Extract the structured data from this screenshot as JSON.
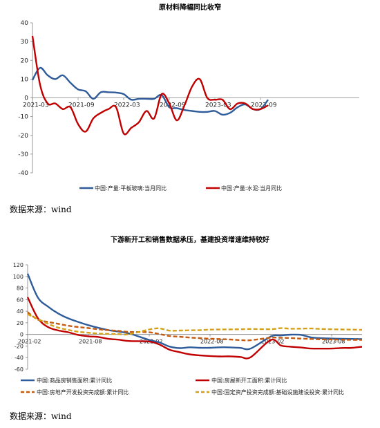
{
  "chart_data": [
    {
      "type": "line",
      "title": "原材料降幅同比收窄",
      "xlabel": "",
      "ylabel": "",
      "ylim": [
        -40,
        40
      ],
      "yticks": [
        40,
        30,
        20,
        10,
        0,
        -10,
        -20,
        -30,
        -40
      ],
      "xlim": [
        "2021-03",
        "2024-10"
      ],
      "xticks": [
        "2021-03",
        "2021-09",
        "2022-03",
        "2022-09",
        "2023-03",
        "2023-09"
      ],
      "grid": false,
      "legend_position": "bottom",
      "series": [
        {
          "name": "中国:产量:平板玻璃:当月同比",
          "color": "#2e5b9a",
          "x": [
            "2021-03",
            "2021-04",
            "2021-05",
            "2021-06",
            "2021-07",
            "2021-08",
            "2021-09",
            "2021-10",
            "2021-11",
            "2021-12",
            "2022-01",
            "2022-02",
            "2022-03",
            "2022-04",
            "2022-05",
            "2022-06",
            "2022-07",
            "2022-08",
            "2022-09",
            "2022-10",
            "2022-11",
            "2022-12",
            "2023-01",
            "2023-02",
            "2023-03",
            "2023-04",
            "2023-05",
            "2023-06",
            "2023-07",
            "2023-08",
            "2023-09",
            "2023-10"
          ],
          "values": [
            9.5,
            16,
            12,
            10,
            12,
            8,
            4.5,
            3.5,
            -0.5,
            3,
            3,
            2.8,
            2,
            -1,
            -0.5,
            -0.5,
            -0.5,
            1.5,
            -5,
            -5.5,
            -6.5,
            -7,
            -7.5,
            -7.5,
            -7,
            -9,
            -8,
            -5,
            -3.5,
            -6,
            -6,
            -1
          ]
        },
        {
          "name": "中国:产量:水泥:当月同比",
          "color": "#c00000",
          "x": [
            "2021-03",
            "2021-04",
            "2021-05",
            "2021-06",
            "2021-07",
            "2021-08",
            "2021-09",
            "2021-10",
            "2021-11",
            "2021-12",
            "2022-01",
            "2022-02",
            "2022-03",
            "2022-04",
            "2022-05",
            "2022-06",
            "2022-07",
            "2022-08",
            "2022-09",
            "2022-10",
            "2022-11",
            "2022-12",
            "2023-01",
            "2023-02",
            "2023-03",
            "2023-04",
            "2023-05",
            "2023-06",
            "2023-07",
            "2023-08",
            "2023-09",
            "2023-10"
          ],
          "values": [
            33,
            7,
            -3,
            -3,
            -6,
            -5,
            -14,
            -18,
            -11,
            -8,
            -6,
            -5,
            -19,
            -16,
            -13,
            -7,
            -11,
            2,
            -3,
            -12,
            -4,
            6,
            10,
            0,
            -1,
            -1,
            -6,
            -3,
            -3,
            -6,
            -6,
            -4
          ]
        }
      ]
    },
    {
      "type": "line",
      "title": "下游新开工和销售数据承压，基建投资增速维持较好",
      "xlabel": "",
      "ylabel": "",
      "ylim": [
        -60,
        120
      ],
      "yticks": [
        120,
        100,
        80,
        60,
        40,
        20,
        0,
        -20,
        -40,
        -60
      ],
      "xlim": [
        "2021-02",
        "2023-11"
      ],
      "xticks": [
        "2021-02",
        "2021-08",
        "2022-02",
        "2022-08",
        "2023-02",
        "2023-08"
      ],
      "grid": false,
      "legend_position": "bottom",
      "series": [
        {
          "name": "中国:商品房销售面积:累计同比",
          "color": "#2e5b9a",
          "dash": "solid",
          "x": [
            "2021-02",
            "2021-03",
            "2021-04",
            "2021-05",
            "2021-06",
            "2021-07",
            "2021-08",
            "2021-09",
            "2021-10",
            "2021-11",
            "2021-12",
            "2022-02",
            "2022-03",
            "2022-04",
            "2022-05",
            "2022-06",
            "2022-07",
            "2022-08",
            "2022-09",
            "2022-10",
            "2022-11",
            "2022-12",
            "2023-02",
            "2023-03",
            "2023-04",
            "2023-05",
            "2023-06",
            "2023-07",
            "2023-08",
            "2023-09",
            "2023-10",
            "2023-11"
          ],
          "values": [
            104.9,
            63.8,
            48.1,
            36.3,
            27.7,
            21.5,
            15.9,
            11.3,
            7.3,
            4.8,
            1.9,
            -9.6,
            -13.8,
            -20.9,
            -23.6,
            -22.2,
            -23.1,
            -23,
            -22.2,
            -22.3,
            -23.3,
            -24.3,
            -3.6,
            -1.8,
            -0.4,
            -0.9,
            -5.3,
            -6.5,
            -7.1,
            -7.5,
            -7.8,
            -8
          ]
        },
        {
          "name": "中国:房屋新开工面积:累计同比",
          "color": "#c00000",
          "dash": "solid",
          "x": [
            "2021-02",
            "2021-03",
            "2021-04",
            "2021-05",
            "2021-06",
            "2021-07",
            "2021-08",
            "2021-09",
            "2021-10",
            "2021-11",
            "2021-12",
            "2022-02",
            "2022-03",
            "2022-04",
            "2022-05",
            "2022-06",
            "2022-07",
            "2022-08",
            "2022-09",
            "2022-10",
            "2022-11",
            "2022-12",
            "2023-02",
            "2023-03",
            "2023-04",
            "2023-05",
            "2023-06",
            "2023-07",
            "2023-08",
            "2023-09",
            "2023-10",
            "2023-11"
          ],
          "values": [
            64.3,
            28.2,
            12.8,
            6.9,
            3.8,
            -0.9,
            -3.2,
            -4.5,
            -7.7,
            -9.1,
            -11.4,
            -12.2,
            -17.5,
            -26.3,
            -30.6,
            -34.4,
            -36.1,
            -37.2,
            -38,
            -37.8,
            -38.9,
            -39.4,
            -9.4,
            -19.2,
            -21.2,
            -22.6,
            -24.3,
            -24.5,
            -24.4,
            -23.4,
            -23.2,
            -21.2
          ]
        },
        {
          "name": "中国:房地产开发投资完成额:累计同比",
          "color": "#c55a11",
          "dash": "dashed",
          "x": [
            "2021-02",
            "2021-03",
            "2021-04",
            "2021-05",
            "2021-06",
            "2021-07",
            "2021-08",
            "2021-09",
            "2021-10",
            "2021-11",
            "2021-12",
            "2022-02",
            "2022-03",
            "2022-04",
            "2022-05",
            "2022-06",
            "2022-07",
            "2022-08",
            "2022-09",
            "2022-10",
            "2022-11",
            "2022-12",
            "2023-02",
            "2023-03",
            "2023-04",
            "2023-05",
            "2023-06",
            "2023-07",
            "2023-08",
            "2023-09",
            "2023-10",
            "2023-11"
          ],
          "values": [
            38.3,
            25.6,
            21.6,
            18.3,
            15,
            12.7,
            10.9,
            8.8,
            7.2,
            6,
            4.4,
            3.7,
            0.7,
            -2.7,
            -4,
            -5.4,
            -6.4,
            -7.4,
            -8,
            -8.8,
            -9.8,
            -10,
            -5.7,
            -5.8,
            -6.2,
            -7.2,
            -7.9,
            -8.5,
            -8.8,
            -9.1,
            -9.3,
            -9.4
          ]
        },
        {
          "name": "中国:固定资产投资完成额:基础设施建设投资:累计同比",
          "color": "#d4a017",
          "dash": "dashed",
          "x": [
            "2021-02",
            "2021-03",
            "2021-04",
            "2021-05",
            "2021-06",
            "2021-07",
            "2021-08",
            "2021-09",
            "2021-10",
            "2021-11",
            "2021-12",
            "2022-02",
            "2022-03",
            "2022-04",
            "2022-05",
            "2022-06",
            "2022-07",
            "2022-08",
            "2022-09",
            "2022-10",
            "2022-11",
            "2022-12",
            "2023-02",
            "2023-03",
            "2023-04",
            "2023-05",
            "2023-06",
            "2023-07",
            "2023-08",
            "2023-09",
            "2023-10",
            "2023-11"
          ],
          "values": [
            34.8,
            26.8,
            18.4,
            11.8,
            7.8,
            4.6,
            2.9,
            1.5,
            1,
            0.5,
            0.4,
            8.6,
            10.5,
            6.5,
            6.7,
            7.1,
            7.4,
            8.3,
            8.6,
            8.7,
            8.9,
            9.4,
            9,
            10.8,
            9.8,
            10,
            10.2,
            9.4,
            8.9,
            8.6,
            8.3,
            8
          ]
        }
      ]
    }
  ],
  "sources": {
    "chart1": "数据来源：wind",
    "chart2": "数据来源：wind"
  }
}
